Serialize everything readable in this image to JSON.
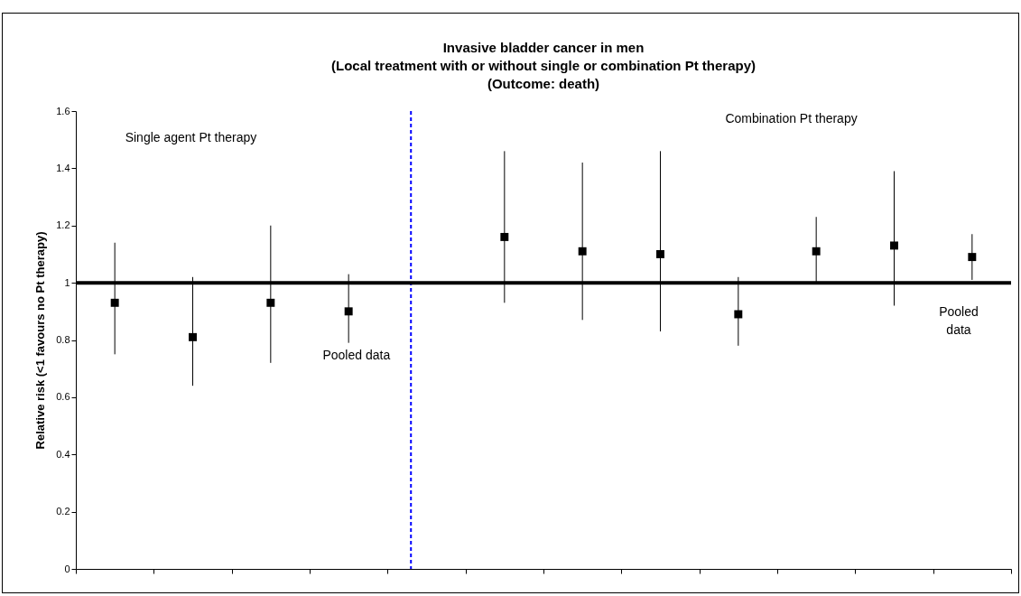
{
  "chart_data": {
    "type": "scatter",
    "title": [
      "Invasive bladder cancer in men",
      "(Local treatment with or without single or combination Pt therapy)",
      "(Outcome: death)"
    ],
    "ylabel": "Relative risk (<1 favours no Pt therapy)",
    "categories": [
      null,
      null,
      null,
      null,
      null,
      null,
      null,
      null,
      null,
      null,
      null,
      null
    ],
    "values": [
      0.93,
      0.81,
      0.93,
      0.9,
      null,
      1.16,
      1.11,
      1.1,
      0.89,
      1.11,
      1.13,
      1.09
    ],
    "errors": [
      [
        0.75,
        1.14
      ],
      [
        0.64,
        1.02
      ],
      [
        0.72,
        1.2
      ],
      [
        0.79,
        1.03
      ],
      null,
      [
        0.93,
        1.46
      ],
      [
        0.87,
        1.42
      ],
      [
        0.83,
        1.46
      ],
      [
        0.78,
        1.02
      ],
      [
        1.0,
        1.23
      ],
      [
        0.92,
        1.39
      ],
      [
        1.01,
        1.17
      ]
    ],
    "color": "#000000",
    "marker": "square",
    "ylim": [
      0,
      1.6
    ],
    "yticks": [
      0,
      0.2,
      0.4,
      0.6,
      0.8,
      1,
      1.2,
      1.4,
      1.6
    ],
    "ref_lines": [
      {
        "axis": "y",
        "value": 1,
        "color": "#000000",
        "line_style": "solid"
      }
    ],
    "annotations": [
      "Single agent Pt therapy",
      "Pooled data",
      "Combination Pt therapy",
      "Pooled\ndata"
    ],
    "grid": false
  }
}
